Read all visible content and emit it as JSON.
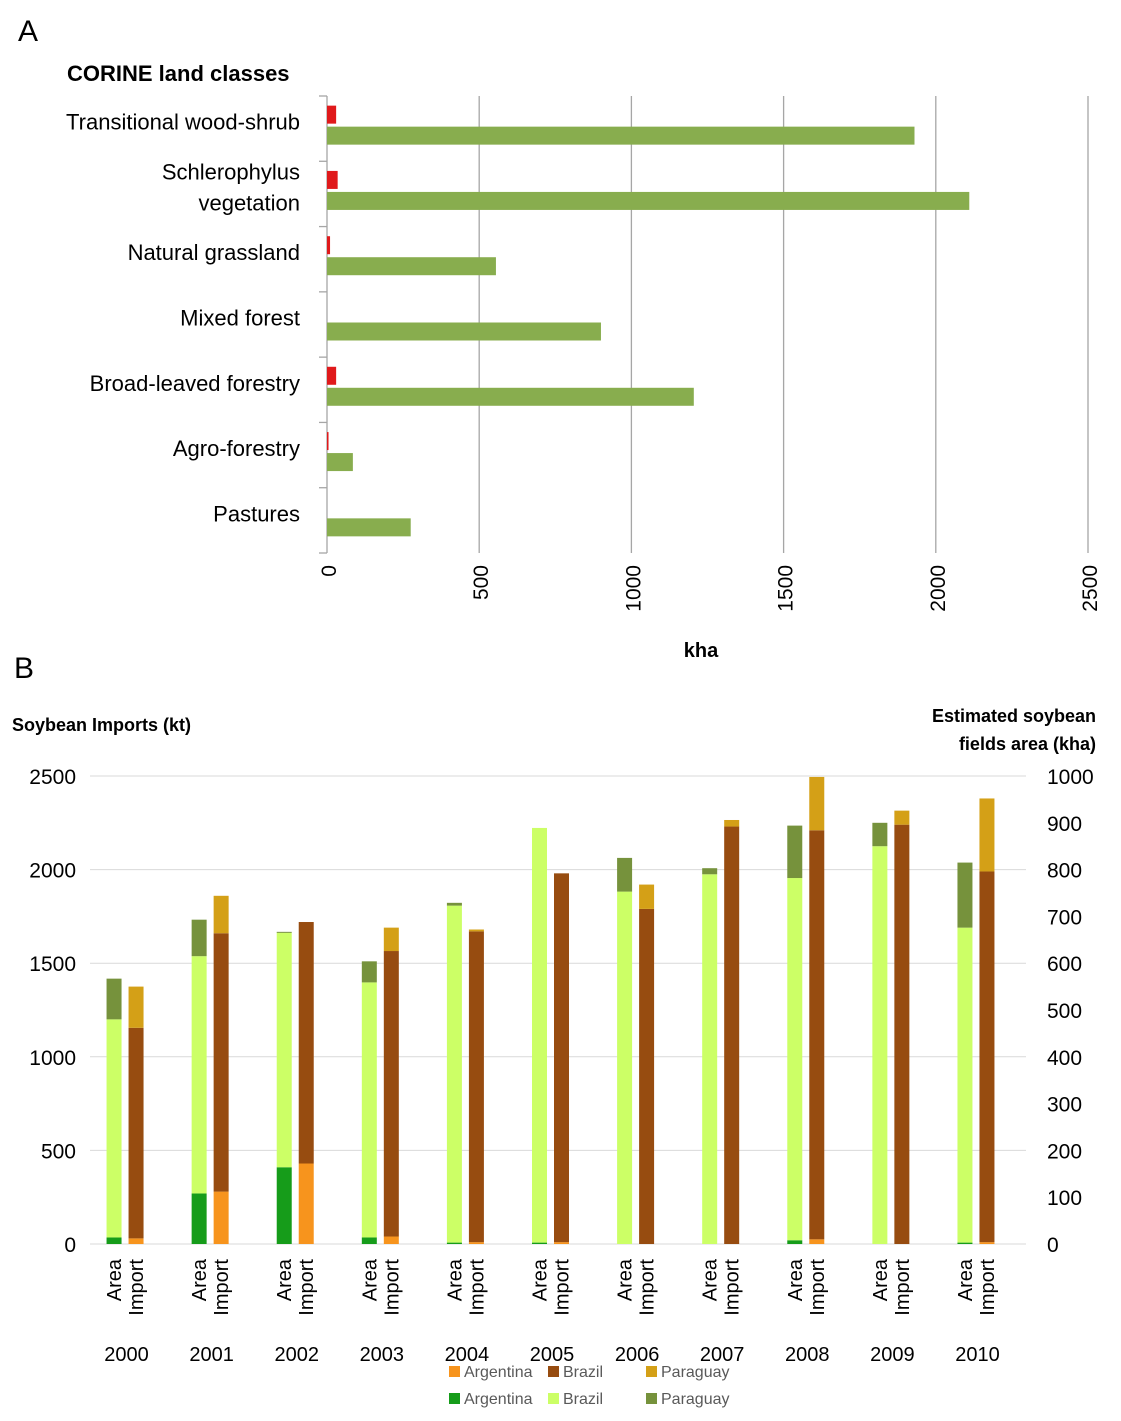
{
  "panel_a": {
    "letter": "A",
    "chart_data": {
      "type": "bar",
      "orientation": "horizontal",
      "title": "CORINE land classes",
      "xlabel": "kha",
      "ylabel": "",
      "xlim": [
        0,
        2500
      ],
      "xticks": [
        "0",
        "500",
        "1000",
        "1500",
        "2000",
        "2500"
      ],
      "categories": [
        "Transitional wood-shrub",
        "Schlerophylus vegetation",
        "Natural grassland",
        "Mixed forest",
        "Broad-leaved forestry",
        "Agro-forestry",
        "Pastures"
      ],
      "category_lines": [
        [
          "Transitional wood-shrub"
        ],
        [
          "Schlerophylus",
          "vegetation"
        ],
        [
          "Natural grassland"
        ],
        [
          "Mixed forest"
        ],
        [
          "Broad-leaved forestry"
        ],
        [
          "Agro-forestry"
        ],
        [
          "Pastures"
        ]
      ],
      "series": [
        {
          "color": "#e0191b",
          "values": [
            30,
            35,
            10,
            0,
            30,
            5,
            0
          ]
        },
        {
          "color": "#88ad4e",
          "values": [
            1930,
            2110,
            555,
            900,
            1205,
            85,
            275
          ]
        }
      ],
      "grid": true
    }
  },
  "panel_b": {
    "letter": "B",
    "chart_data": {
      "type": "bar",
      "stacked": true,
      "left_axis_title": "Soybean Imports (kt)",
      "right_axis_title_lines": [
        "Estimated soybean",
        "fields area (kha)"
      ],
      "ylim_left": [
        0,
        2500
      ],
      "ylim_right": [
        0,
        1000
      ],
      "yticks_left": [
        "0",
        "500",
        "1000",
        "1500",
        "2000",
        "2500"
      ],
      "yticks_right": [
        "0",
        "100",
        "200",
        "300",
        "400",
        "500",
        "600",
        "700",
        "800",
        "900",
        "1000"
      ],
      "bar_labels": [
        "Area",
        "Import"
      ],
      "years": [
        "2000",
        "2001",
        "2002",
        "2003",
        "2004",
        "2005",
        "2006",
        "2007",
        "2008",
        "2009",
        "2010"
      ],
      "import_series": [
        {
          "name": "Argentina",
          "color": "#f7941d",
          "values": [
            30,
            280,
            430,
            40,
            10,
            10,
            0,
            0,
            25,
            0,
            10
          ]
        },
        {
          "name": "Brazil",
          "color": "#974c10",
          "values": [
            1125,
            1380,
            1290,
            1525,
            1660,
            1970,
            1790,
            2230,
            2185,
            2240,
            1980
          ]
        },
        {
          "name": "Paraguay",
          "color": "#d4a017",
          "values": [
            220,
            200,
            0,
            125,
            10,
            0,
            130,
            35,
            285,
            75,
            390
          ]
        }
      ],
      "area_series": [
        {
          "name": "Argentina",
          "color": "#169c1a",
          "values": [
            14,
            108,
            164,
            14,
            3,
            3,
            0,
            0,
            8,
            0,
            3
          ]
        },
        {
          "name": "Brazil",
          "color": "#ccff66",
          "values": [
            466,
            507,
            501,
            545,
            720,
            886,
            753,
            790,
            774,
            850,
            673
          ]
        },
        {
          "name": "Paraguay",
          "color": "#76923c",
          "values": [
            87,
            78,
            2,
            45,
            6,
            0,
            72,
            13,
            112,
            50,
            139
          ]
        }
      ],
      "legend": [
        {
          "label": "Argentina",
          "color": "#f7941d"
        },
        {
          "label": "Brazil",
          "color": "#974c10"
        },
        {
          "label": "Paraguay",
          "color": "#d4a017"
        },
        {
          "label": "Argentina",
          "color": "#169c1a"
        },
        {
          "label": "Brazil",
          "color": "#ccff66"
        },
        {
          "label": "Paraguay",
          "color": "#76923c"
        }
      ],
      "legend_placement": "bottom",
      "grid": true
    }
  }
}
